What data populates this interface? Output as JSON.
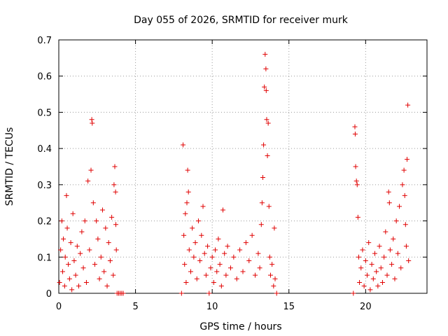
{
  "chart_data": {
    "type": "scatter",
    "title": "Day 055 of 2026, SRMTID for receiver murk",
    "xlabel": "GPS time / hours",
    "ylabel": "SRMTID / TECUs",
    "xlim": [
      0,
      24
    ],
    "ylim": [
      0,
      0.7
    ],
    "xticks": [
      0,
      5,
      10,
      15,
      20
    ],
    "xtick_labels": [
      "0",
      "5",
      "10",
      "15",
      "20"
    ],
    "yticks": [
      0,
      0.1,
      0.2,
      0.3,
      0.4,
      0.5,
      0.6,
      0.7
    ],
    "ytick_labels": [
      "0",
      "0.1",
      "0.2",
      "0.3",
      "0.4",
      "0.5",
      "0.6",
      "0.7"
    ],
    "grid": true,
    "marker": "+",
    "color": "#e00000",
    "series": [
      {
        "name": "SRMTID",
        "points": [
          [
            0.05,
            0.03
          ],
          [
            0.12,
            0.12
          ],
          [
            0.2,
            0.2
          ],
          [
            0.25,
            0.06
          ],
          [
            0.3,
            0.15
          ],
          [
            0.38,
            0.02
          ],
          [
            0.42,
            0.1
          ],
          [
            0.5,
            0.27
          ],
          [
            0.55,
            0.18
          ],
          [
            0.62,
            0.08
          ],
          [
            0.7,
            0.04
          ],
          [
            0.78,
            0.14
          ],
          [
            0.85,
            0.01
          ],
          [
            0.92,
            0.22
          ],
          [
            1.0,
            0.09
          ],
          [
            1.1,
            0.05
          ],
          [
            1.2,
            0.13
          ],
          [
            1.3,
            0.02
          ],
          [
            1.4,
            0.11
          ],
          [
            1.5,
            0.17
          ],
          [
            1.6,
            0.07
          ],
          [
            1.7,
            0.2
          ],
          [
            1.8,
            0.03
          ],
          [
            1.9,
            0.31
          ],
          [
            2.0,
            0.12
          ],
          [
            2.1,
            0.34
          ],
          [
            2.15,
            0.48
          ],
          [
            2.18,
            0.47
          ],
          [
            2.25,
            0.25
          ],
          [
            2.35,
            0.08
          ],
          [
            2.45,
            0.2
          ],
          [
            2.55,
            0.15
          ],
          [
            2.65,
            0.04
          ],
          [
            2.75,
            0.1
          ],
          [
            2.85,
            0.23
          ],
          [
            2.95,
            0.06
          ],
          [
            3.05,
            0.18
          ],
          [
            3.15,
            0.02
          ],
          [
            3.25,
            0.14
          ],
          [
            3.35,
            0.09
          ],
          [
            3.45,
            0.21
          ],
          [
            3.55,
            0.05
          ],
          [
            3.6,
            0.3
          ],
          [
            3.65,
            0.35
          ],
          [
            3.7,
            0.28
          ],
          [
            3.72,
            0.19
          ],
          [
            3.75,
            0.12
          ],
          [
            3.8,
            0.0
          ],
          [
            3.9,
            0.0
          ],
          [
            4.0,
            0.0
          ],
          [
            4.1,
            0.0
          ],
          [
            4.2,
            0.0
          ],
          [
            8.0,
            0.0
          ],
          [
            8.1,
            0.41
          ],
          [
            8.15,
            0.16
          ],
          [
            8.2,
            0.08
          ],
          [
            8.25,
            0.22
          ],
          [
            8.3,
            0.03
          ],
          [
            8.35,
            0.25
          ],
          [
            8.4,
            0.34
          ],
          [
            8.45,
            0.28
          ],
          [
            8.5,
            0.12
          ],
          [
            8.6,
            0.06
          ],
          [
            8.7,
            0.18
          ],
          [
            8.8,
            0.1
          ],
          [
            8.9,
            0.14
          ],
          [
            9.0,
            0.04
          ],
          [
            9.1,
            0.2
          ],
          [
            9.2,
            0.09
          ],
          [
            9.3,
            0.16
          ],
          [
            9.4,
            0.24
          ],
          [
            9.5,
            0.11
          ],
          [
            9.6,
            0.05
          ],
          [
            9.7,
            0.13
          ],
          [
            9.8,
            0.0
          ],
          [
            9.9,
            0.07
          ],
          [
            10.0,
            0.1
          ],
          [
            10.1,
            0.03
          ],
          [
            10.2,
            0.12
          ],
          [
            10.3,
            0.06
          ],
          [
            10.4,
            0.15
          ],
          [
            10.5,
            0.08
          ],
          [
            10.6,
            0.02
          ],
          [
            10.7,
            0.23
          ],
          [
            10.8,
            0.11
          ],
          [
            10.9,
            0.05
          ],
          [
            11.0,
            0.13
          ],
          [
            11.2,
            0.07
          ],
          [
            11.4,
            0.1
          ],
          [
            11.6,
            0.04
          ],
          [
            11.8,
            0.12
          ],
          [
            12.0,
            0.06
          ],
          [
            12.2,
            0.14
          ],
          [
            12.4,
            0.09
          ],
          [
            12.6,
            0.16
          ],
          [
            12.8,
            0.05
          ],
          [
            13.0,
            0.11
          ],
          [
            13.1,
            0.07
          ],
          [
            13.2,
            0.19
          ],
          [
            13.25,
            0.25
          ],
          [
            13.3,
            0.32
          ],
          [
            13.35,
            0.41
          ],
          [
            13.4,
            0.57
          ],
          [
            13.45,
            0.66
          ],
          [
            13.5,
            0.62
          ],
          [
            13.52,
            0.56
          ],
          [
            13.55,
            0.48
          ],
          [
            13.6,
            0.38
          ],
          [
            13.65,
            0.47
          ],
          [
            13.7,
            0.24
          ],
          [
            13.75,
            0.1
          ],
          [
            13.8,
            0.05
          ],
          [
            13.9,
            0.08
          ],
          [
            14.0,
            0.02
          ],
          [
            14.05,
            0.18
          ],
          [
            14.1,
            0.04
          ],
          [
            14.2,
            0.0
          ],
          [
            19.2,
            0.0
          ],
          [
            19.3,
            0.46
          ],
          [
            19.32,
            0.44
          ],
          [
            19.35,
            0.35
          ],
          [
            19.4,
            0.31
          ],
          [
            19.45,
            0.3
          ],
          [
            19.5,
            0.21
          ],
          [
            19.55,
            0.1
          ],
          [
            19.6,
            0.03
          ],
          [
            19.7,
            0.07
          ],
          [
            19.8,
            0.12
          ],
          [
            19.9,
            0.02
          ],
          [
            20.0,
            0.09
          ],
          [
            20.1,
            0.05
          ],
          [
            20.2,
            0.14
          ],
          [
            20.3,
            0.01
          ],
          [
            20.4,
            0.08
          ],
          [
            20.5,
            0.04
          ],
          [
            20.6,
            0.11
          ],
          [
            20.7,
            0.06
          ],
          [
            20.8,
            0.02
          ],
          [
            20.9,
            0.13
          ],
          [
            21.0,
            0.07
          ],
          [
            21.1,
            0.03
          ],
          [
            21.2,
            0.1
          ],
          [
            21.3,
            0.17
          ],
          [
            21.4,
            0.05
          ],
          [
            21.5,
            0.28
          ],
          [
            21.55,
            0.25
          ],
          [
            21.6,
            0.12
          ],
          [
            21.7,
            0.08
          ],
          [
            21.8,
            0.15
          ],
          [
            21.9,
            0.04
          ],
          [
            22.0,
            0.2
          ],
          [
            22.1,
            0.11
          ],
          [
            22.2,
            0.24
          ],
          [
            22.3,
            0.07
          ],
          [
            22.4,
            0.3
          ],
          [
            22.5,
            0.34
          ],
          [
            22.55,
            0.27
          ],
          [
            22.6,
            0.19
          ],
          [
            22.65,
            0.13
          ],
          [
            22.7,
            0.37
          ],
          [
            22.75,
            0.52
          ],
          [
            22.8,
            0.09
          ]
        ]
      }
    ]
  }
}
